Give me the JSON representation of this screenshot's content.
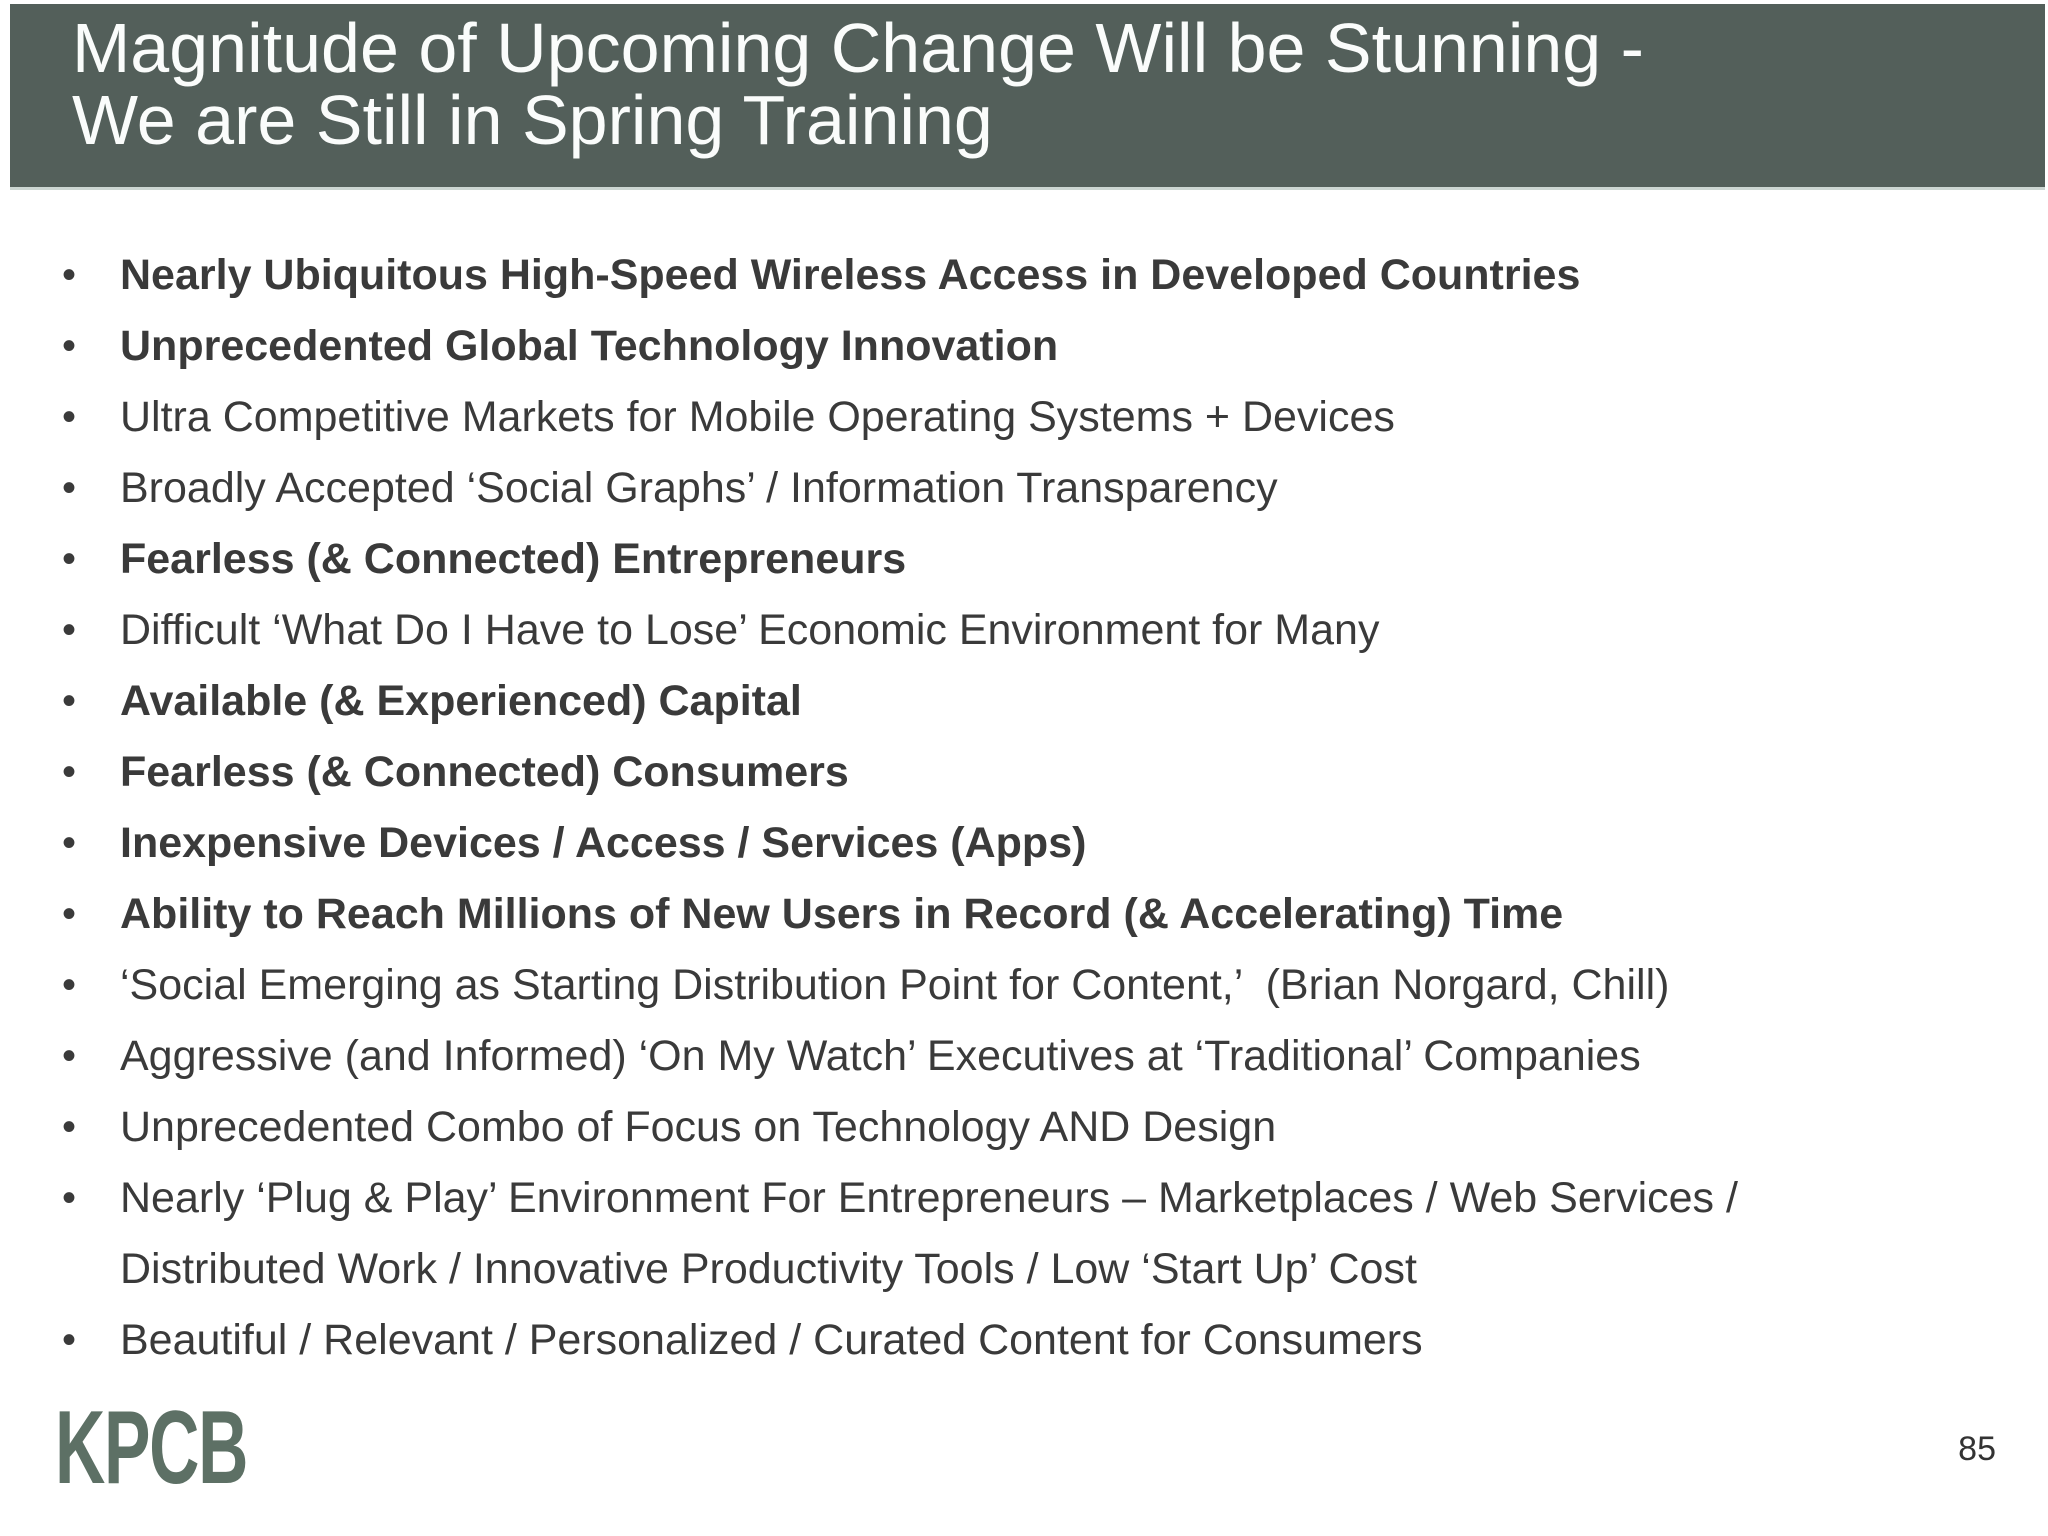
{
  "slide": {
    "title": "Magnitude of Upcoming Change Will be Stunning -\nWe are Still in Spring Training",
    "bullets": [
      {
        "text": "Nearly Ubiquitous High-Speed Wireless Access in Developed Countries",
        "bold": true
      },
      {
        "text": "Unprecedented Global Technology Innovation",
        "bold": true
      },
      {
        "text": "Ultra Competitive Markets for Mobile Operating Systems + Devices",
        "bold": false
      },
      {
        "text": "Broadly Accepted ‘Social Graphs’ / Information Transparency",
        "bold": false
      },
      {
        "text": "Fearless (& Connected) Entrepreneurs",
        "bold": true
      },
      {
        "text": "Difficult ‘What Do I Have to Lose’ Economic Environment for Many",
        "bold": false
      },
      {
        "text": "Available (& Experienced) Capital",
        "bold": true
      },
      {
        "text": "Fearless (& Connected) Consumers",
        "bold": true
      },
      {
        "text": "Inexpensive Devices / Access / Services (Apps)",
        "bold": true
      },
      {
        "text": "Ability to Reach Millions of New Users in Record (& Accelerating) Time",
        "bold": true
      },
      {
        "text": "‘Social Emerging as Starting Distribution Point for Content,’  (Brian Norgard, Chill)",
        "bold": false
      },
      {
        "text": "Aggressive (and Informed) ‘On My Watch’ Executives at ‘Traditional’ Companies",
        "bold": false
      },
      {
        "text": "Unprecedented Combo of Focus on Technology AND Design",
        "bold": false
      },
      {
        "text": "Nearly ‘Plug & Play’ Environment For Entrepreneurs – Marketplaces / Web Services /\nDistributed Work / Innovative Productivity Tools / Low ‘Start Up’ Cost",
        "bold": false
      },
      {
        "text": "Beautiful / Relevant / Personalized / Curated Content for Consumers",
        "bold": false
      }
    ],
    "bullet_glyph": "•",
    "footer": {
      "logo": "KPCB",
      "page_number": "85"
    },
    "colors": {
      "header_bg": "#535f5a",
      "title_text": "#fafcfb",
      "body_text": "#3a3a3a",
      "logo_green": "#5d7065"
    }
  }
}
